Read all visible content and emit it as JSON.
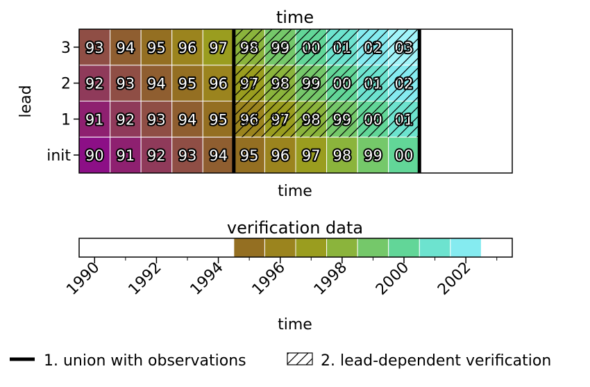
{
  "chart_data": [
    {
      "type": "heatmap",
      "title": "time",
      "xlabel": "time",
      "ylabel": "lead",
      "leads": [
        "init",
        "1",
        "2",
        "3"
      ],
      "x_init_years": [
        1990,
        1991,
        1992,
        1993,
        1994,
        1995,
        1996,
        1997,
        1998,
        1999,
        2000,
        2001,
        2002,
        2003
      ],
      "cells": [
        {
          "lead": "init",
          "labels": [
            "90",
            "91",
            "92",
            "93",
            "94",
            "95",
            "96",
            "97",
            "98",
            "99",
            "00"
          ],
          "verification_years": [
            1990,
            1991,
            1992,
            1993,
            1994,
            1995,
            1996,
            1997,
            1998,
            1999,
            2000
          ]
        },
        {
          "lead": "1",
          "labels": [
            "91",
            "92",
            "93",
            "94",
            "95",
            "96",
            "97",
            "98",
            "99",
            "00",
            "01"
          ],
          "verification_years": [
            1991,
            1992,
            1993,
            1994,
            1995,
            1996,
            1997,
            1998,
            1999,
            2000,
            2001
          ]
        },
        {
          "lead": "2",
          "labels": [
            "92",
            "93",
            "94",
            "95",
            "96",
            "97",
            "98",
            "99",
            "00",
            "01",
            "02"
          ],
          "verification_years": [
            1992,
            1993,
            1994,
            1995,
            1996,
            1997,
            1998,
            1999,
            2000,
            2001,
            2002
          ]
        },
        {
          "lead": "3",
          "labels": [
            "93",
            "94",
            "95",
            "96",
            "97",
            "98",
            "99",
            "00",
            "01",
            "02",
            "03"
          ],
          "verification_years": [
            1993,
            1994,
            1995,
            1996,
            1997,
            1998,
            1999,
            2000,
            2001,
            2002,
            2003
          ]
        }
      ],
      "union_boundaries_years": [
        1994.5,
        2000.5
      ],
      "hatched_region": {
        "init_years_from": 1995,
        "init_years_to": 2000,
        "leads": [
          "1",
          "2",
          "3"
        ]
      }
    },
    {
      "type": "heatmap",
      "title": "verification data",
      "xlabel": "time",
      "xlim": [
        1989.5,
        2003.5
      ],
      "filled_years": [
        1995,
        1996,
        1997,
        1998,
        1999,
        2000,
        2001,
        2002
      ],
      "xticks": [
        1990,
        1992,
        1994,
        1996,
        1998,
        2000,
        2002
      ]
    }
  ],
  "year_color_map": {
    "1990": "#8c0f86",
    "1991": "#8e2070",
    "1992": "#8f3a5a",
    "1993": "#8f4e45",
    "1994": "#8f5e30",
    "1995": "#946f22",
    "1996": "#9b841e",
    "1997": "#9a9d1f",
    "1998": "#8bb43c",
    "1999": "#75c86a",
    "2000": "#62d698",
    "2001": "#6de3cf",
    "2002": "#85ebf0",
    "2003": "#a2f4f9"
  },
  "legend": {
    "union_label": "1. union with observations",
    "hatch_label": "2. lead-dependent verification"
  }
}
